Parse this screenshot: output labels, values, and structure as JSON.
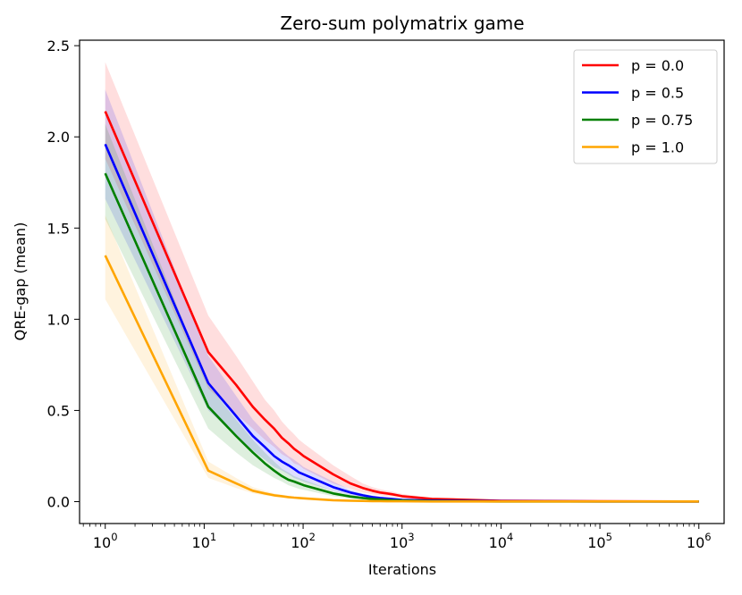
{
  "chart_data": {
    "type": "line",
    "title": "Zero-sum polymatrix game",
    "xlabel": "Iterations",
    "ylabel": "QRE-gap (mean)",
    "xscale": "log",
    "xlim": [
      0.55,
      1800000
    ],
    "ylim": [
      -0.12,
      2.53
    ],
    "x_ticks": [
      {
        "value": 1,
        "mantissa": "10",
        "exp": "0"
      },
      {
        "value": 10,
        "mantissa": "10",
        "exp": "1"
      },
      {
        "value": 100,
        "mantissa": "10",
        "exp": "2"
      },
      {
        "value": 1000,
        "mantissa": "10",
        "exp": "3"
      },
      {
        "value": 10000,
        "mantissa": "10",
        "exp": "4"
      },
      {
        "value": 100000,
        "mantissa": "10",
        "exp": "5"
      },
      {
        "value": 1000000,
        "mantissa": "10",
        "exp": "6"
      }
    ],
    "y_ticks": [
      {
        "value": 0.0,
        "label": "0.0"
      },
      {
        "value": 0.5,
        "label": "0.5"
      },
      {
        "value": 1.0,
        "label": "1.0"
      },
      {
        "value": 1.5,
        "label": "1.5"
      },
      {
        "value": 2.0,
        "label": "2.0"
      },
      {
        "value": 2.5,
        "label": "2.5"
      }
    ],
    "grid": false,
    "legend_position": "top-right",
    "x": [
      1,
      11,
      21,
      31,
      41,
      51,
      61,
      71,
      81,
      91,
      101,
      201,
      301,
      401,
      501,
      601,
      701,
      801,
      901,
      1001,
      2001,
      10001,
      100001,
      1000001
    ],
    "series": [
      {
        "name": "p =  0.0",
        "color": "#ff0000",
        "values": [
          2.14,
          0.82,
          0.64,
          0.52,
          0.45,
          0.4,
          0.35,
          0.32,
          0.29,
          0.27,
          0.25,
          0.15,
          0.1,
          0.075,
          0.06,
          0.05,
          0.045,
          0.04,
          0.035,
          0.03,
          0.015,
          0.005,
          0.002,
          0.001
        ],
        "lower": [
          1.88,
          0.62,
          0.48,
          0.4,
          0.34,
          0.3,
          0.26,
          0.24,
          0.21,
          0.2,
          0.18,
          0.1,
          0.07,
          0.05,
          0.04,
          0.035,
          0.03,
          0.028,
          0.024,
          0.02,
          0.01,
          0.003,
          0.001,
          0.0
        ],
        "upper": [
          2.41,
          1.02,
          0.8,
          0.66,
          0.56,
          0.5,
          0.44,
          0.4,
          0.37,
          0.34,
          0.32,
          0.2,
          0.14,
          0.1,
          0.08,
          0.068,
          0.06,
          0.055,
          0.048,
          0.042,
          0.02,
          0.007,
          0.003,
          0.002
        ]
      },
      {
        "name": "p =  0.5",
        "color": "#0000ff",
        "values": [
          1.96,
          0.65,
          0.47,
          0.36,
          0.3,
          0.25,
          0.22,
          0.2,
          0.18,
          0.16,
          0.15,
          0.08,
          0.05,
          0.035,
          0.025,
          0.02,
          0.017,
          0.014,
          0.012,
          0.01,
          0.006,
          0.002,
          0.001,
          0.001
        ],
        "lower": [
          1.66,
          0.5,
          0.36,
          0.28,
          0.23,
          0.19,
          0.17,
          0.15,
          0.13,
          0.12,
          0.11,
          0.06,
          0.035,
          0.025,
          0.018,
          0.014,
          0.012,
          0.01,
          0.008,
          0.007,
          0.004,
          0.001,
          0.0,
          0.0
        ],
        "upper": [
          2.26,
          0.8,
          0.58,
          0.45,
          0.38,
          0.32,
          0.28,
          0.25,
          0.23,
          0.21,
          0.19,
          0.11,
          0.065,
          0.045,
          0.034,
          0.027,
          0.023,
          0.019,
          0.016,
          0.014,
          0.008,
          0.003,
          0.002,
          0.002
        ]
      },
      {
        "name": "p =  0.75",
        "color": "#008000",
        "values": [
          1.8,
          0.52,
          0.36,
          0.27,
          0.21,
          0.17,
          0.14,
          0.12,
          0.11,
          0.1,
          0.09,
          0.045,
          0.028,
          0.02,
          0.015,
          0.012,
          0.01,
          0.008,
          0.007,
          0.006,
          0.003,
          0.001,
          0.001,
          0.001
        ],
        "lower": [
          1.55,
          0.4,
          0.27,
          0.2,
          0.16,
          0.13,
          0.11,
          0.09,
          0.08,
          0.07,
          0.065,
          0.03,
          0.018,
          0.013,
          0.01,
          0.008,
          0.006,
          0.005,
          0.004,
          0.004,
          0.002,
          0.0,
          0.0,
          0.0
        ],
        "upper": [
          2.07,
          0.64,
          0.45,
          0.34,
          0.27,
          0.22,
          0.18,
          0.16,
          0.14,
          0.13,
          0.12,
          0.06,
          0.038,
          0.027,
          0.02,
          0.016,
          0.014,
          0.011,
          0.01,
          0.008,
          0.004,
          0.002,
          0.002,
          0.002
        ]
      },
      {
        "name": "p =  1.0",
        "color": "#ffa500",
        "values": [
          1.35,
          0.17,
          0.1,
          0.06,
          0.045,
          0.035,
          0.03,
          0.025,
          0.022,
          0.02,
          0.018,
          0.008,
          0.005,
          0.004,
          0.003,
          0.003,
          0.002,
          0.002,
          0.002,
          0.002,
          0.001,
          0.001,
          0.001,
          0.001
        ],
        "lower": [
          1.11,
          0.13,
          0.075,
          0.045,
          0.034,
          0.026,
          0.022,
          0.018,
          0.016,
          0.015,
          0.013,
          0.006,
          0.003,
          0.003,
          0.002,
          0.002,
          0.001,
          0.001,
          0.001,
          0.001,
          0.0,
          0.0,
          0.0,
          0.0
        ],
        "upper": [
          1.57,
          0.22,
          0.13,
          0.08,
          0.06,
          0.045,
          0.038,
          0.032,
          0.028,
          0.025,
          0.023,
          0.011,
          0.007,
          0.005,
          0.004,
          0.004,
          0.003,
          0.003,
          0.003,
          0.003,
          0.002,
          0.002,
          0.002,
          0.002
        ]
      }
    ]
  }
}
